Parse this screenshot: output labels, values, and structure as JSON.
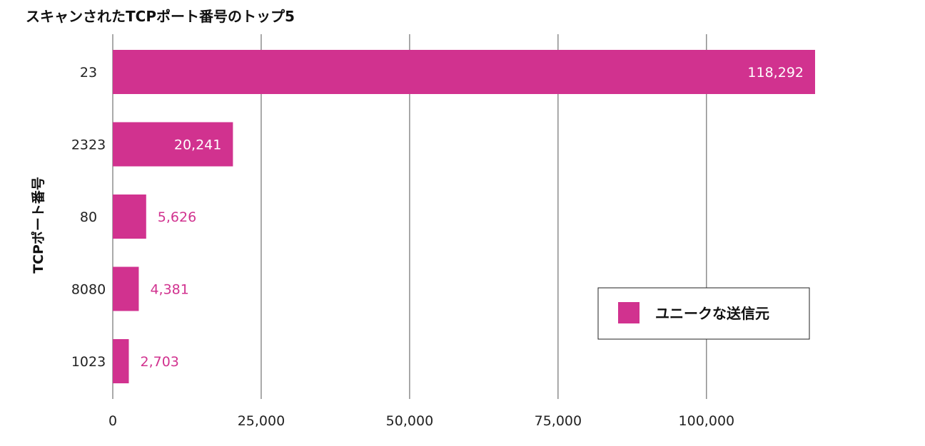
{
  "chart_data": {
    "type": "bar",
    "orientation": "horizontal",
    "title": "スキャンされたTCPポート番号のトップ5",
    "xlabel": "",
    "ylabel": "TCPポート番号",
    "categories": [
      "23",
      "2323",
      "80",
      "8080",
      "1023"
    ],
    "series": [
      {
        "name": "ユニークな送信元",
        "values": [
          118292,
          20241,
          5626,
          4381,
          2703
        ],
        "labels": [
          "118,292",
          "20,241",
          "5,626",
          "4,381",
          "2,703"
        ],
        "color": "#d1328f"
      }
    ],
    "xlim": [
      0,
      118292
    ],
    "xticks": [
      0,
      25000,
      50000,
      75000,
      100000
    ],
    "xtick_labels": [
      "0",
      "25,000",
      "50,000",
      "75,000",
      "100,000"
    ],
    "grid": "vertical",
    "legend": "bottom-right"
  },
  "colors": {
    "bar": "#d1328f",
    "label_inside": "#ffffff",
    "label_outside": "#d1328f",
    "grid": "#555555"
  }
}
